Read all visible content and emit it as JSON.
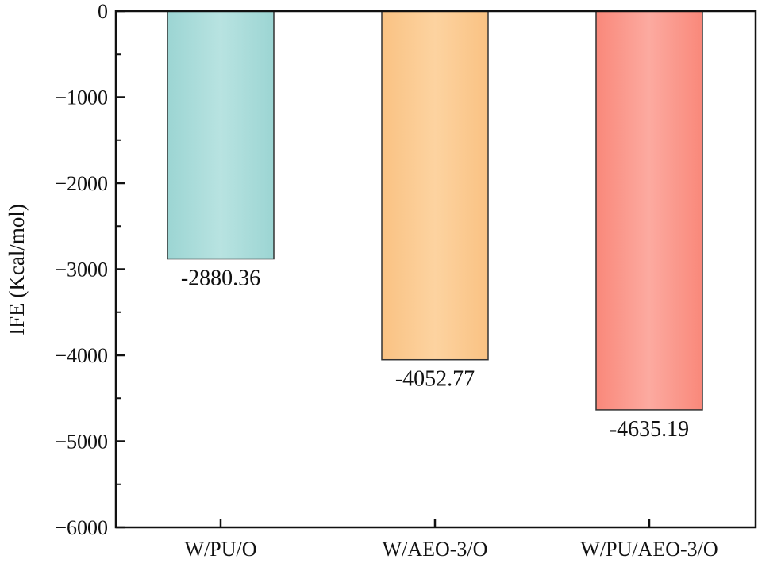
{
  "chart_data": {
    "type": "bar",
    "title": "",
    "xlabel": "",
    "ylabel": "IFE (Kcal/mol)",
    "ylim": [
      -6000,
      0
    ],
    "yticks": [
      0,
      -1000,
      -2000,
      -3000,
      -4000,
      -5000,
      -6000
    ],
    "ytick_labels": [
      "0",
      "−1000",
      "−2000",
      "−3000",
      "−4000",
      "−5000",
      "−6000"
    ],
    "categories": [
      "W/PU/O",
      "W/AEO-3/O",
      "W/PU/AEO-3/O"
    ],
    "values": [
      -2880.36,
      -4052.77,
      -4635.19
    ],
    "data_labels": [
      "-2880.36",
      "-4052.77",
      "-4635.19"
    ],
    "colors": [
      {
        "edge": "#9cd5d3",
        "center": "#b8e3e1"
      },
      {
        "edge": "#f9c283",
        "center": "#fdd3a0"
      },
      {
        "edge": "#f9887a",
        "center": "#fcaaa0"
      }
    ],
    "grid": false,
    "legend": "none"
  }
}
